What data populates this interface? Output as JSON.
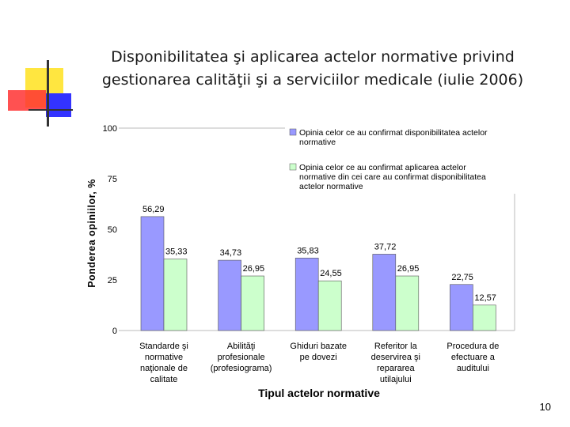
{
  "slide": {
    "title_line1": "Disponibilitatea şi aplicarea actelor normative privind",
    "title_line2": "gestionarea  calităţii şi a serviciilor medicale (iulie 2006)",
    "page_number": "10"
  },
  "colors": {
    "series1": "#9999ff",
    "series2": "#ccffcc",
    "deco_yellow": "#ffe640",
    "deco_red": "#ff3333",
    "deco_blue": "#3333ff",
    "deco_line": "#333333"
  },
  "chart_data": {
    "type": "bar",
    "title": "",
    "xlabel": "Tipul actelor normative",
    "ylabel": "Ponderea opiniilor, %",
    "ylim": [
      0,
      100
    ],
    "yticks": [
      0,
      25,
      50,
      75,
      100
    ],
    "ytick_labels": [
      "0",
      "25",
      "50",
      "75",
      "100"
    ],
    "grid": false,
    "legend_position": "top-right",
    "categories": [
      [
        "Standarde şi",
        "normative",
        "naţionale de",
        "calitate"
      ],
      [
        "Abilităţi",
        "profesionale",
        "(profesiograma)"
      ],
      [
        "Ghiduri bazate",
        "pe dovezi"
      ],
      [
        "Referitor la",
        "deservirea şi",
        "repararea",
        "utilajului"
      ],
      [
        "Procedura de",
        "efectuare a",
        "auditului"
      ]
    ],
    "series": [
      {
        "name": "Opinia celor ce au confirmat disponibilitatea actelor normative",
        "legend_lines": [
          "Opinia celor ce au confirmat disponibilitatea actelor",
          "normative"
        ],
        "values": [
          56.29,
          34.73,
          35.83,
          37.72,
          22.75
        ],
        "labels": [
          "56,29",
          "34,73",
          "35,83",
          "37,72",
          "22,75"
        ]
      },
      {
        "name": "Opinia celor ce au confirmat aplicarea actelor normative din cei care au confirmat disponibilitatea actelor normative",
        "legend_lines": [
          "Opinia celor ce au confirmat aplicarea actelor",
          "normative din cei care au confirmat disponibilitatea",
          "actelor normative"
        ],
        "values": [
          35.33,
          26.95,
          24.55,
          26.95,
          12.57
        ],
        "labels": [
          "35,33",
          "26,95",
          "24,55",
          "26,95",
          "12,57"
        ]
      }
    ]
  }
}
